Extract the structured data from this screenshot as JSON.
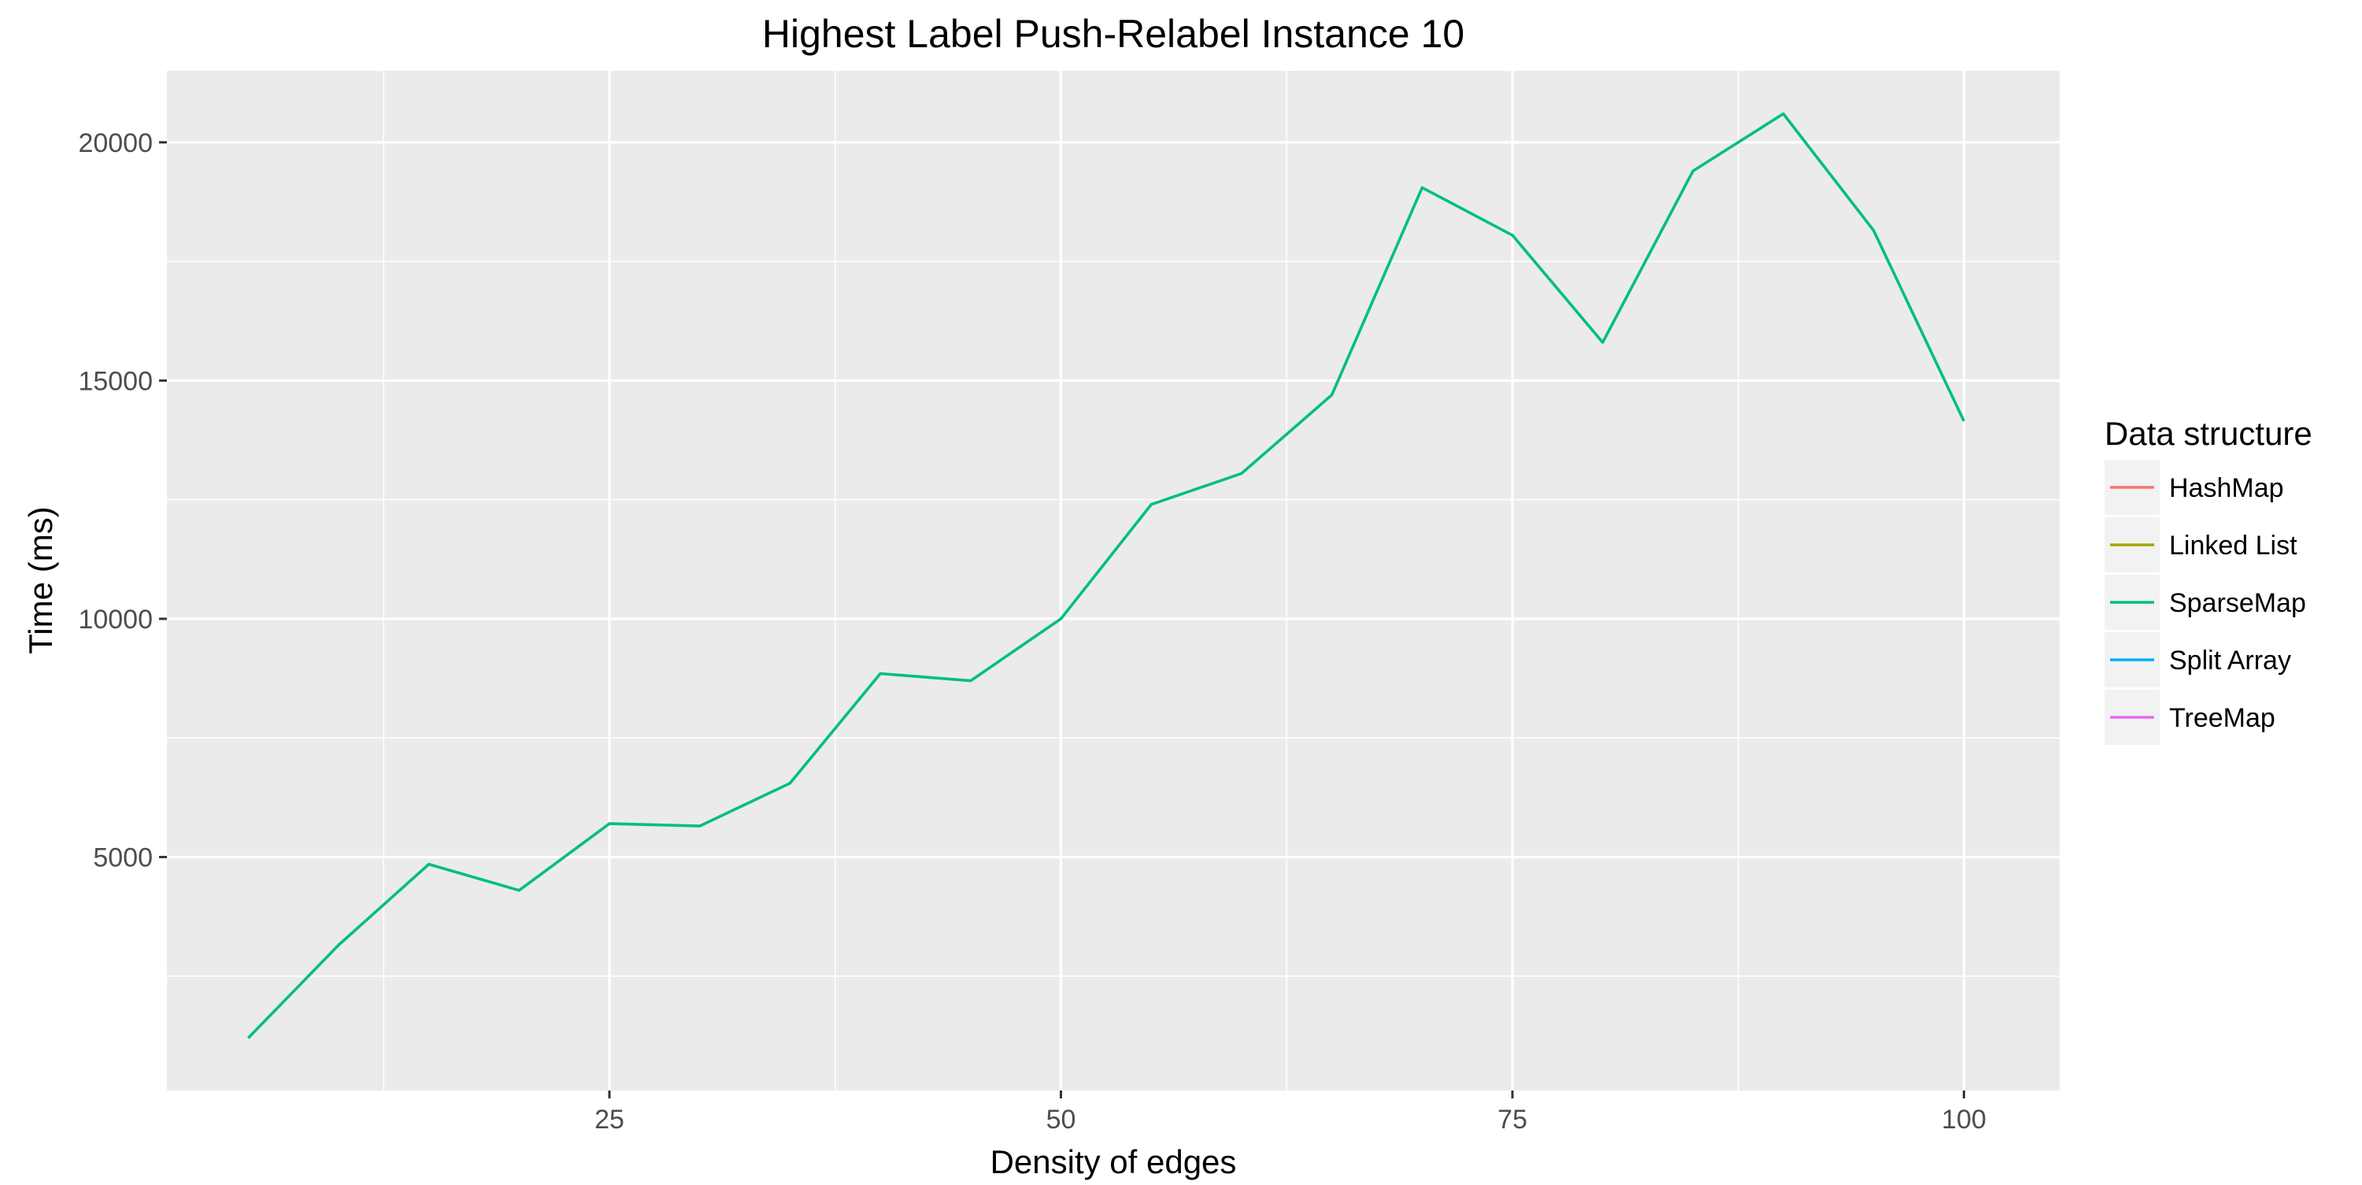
{
  "chart_data": {
    "type": "line",
    "title": "Highest Label Push-Relabel Instance 10",
    "xlabel": "Density of edges",
    "ylabel": "Time (ms)",
    "xlim": [
      0.5,
      105.3
    ],
    "ylim": [
      100,
      21500
    ],
    "x_ticks": [
      25,
      50,
      75,
      100
    ],
    "x_tick_labels": [
      "25",
      "50",
      "75",
      "100"
    ],
    "y_ticks": [
      5000,
      10000,
      15000,
      20000
    ],
    "y_tick_labels": [
      "5000",
      "10000",
      "15000",
      "20000"
    ],
    "grid": true,
    "background": "#ebebeb",
    "legend": {
      "title": "Data structure",
      "placement": "right",
      "entries": [
        {
          "name": "HashMap",
          "color": "#f8766d"
        },
        {
          "name": "Linked List",
          "color": "#a3a500"
        },
        {
          "name": "SparseMap",
          "color": "#00bf7d"
        },
        {
          "name": "Split Array",
          "color": "#00b0f6"
        },
        {
          "name": "TreeMap",
          "color": "#e76bf3"
        }
      ]
    },
    "series": [
      {
        "name": "SparseMap",
        "color": "#00bf7d",
        "x": [
          5,
          10,
          15,
          20,
          25,
          30,
          35,
          40,
          45,
          50,
          55,
          60,
          65,
          70,
          75,
          80,
          85,
          90,
          95,
          100
        ],
        "y": [
          1200,
          3150,
          4850,
          4300,
          5700,
          5650,
          6550,
          8850,
          8700,
          10000,
          12400,
          13050,
          14700,
          19050,
          18050,
          15800,
          19400,
          20600,
          18150,
          14150
        ]
      }
    ]
  }
}
